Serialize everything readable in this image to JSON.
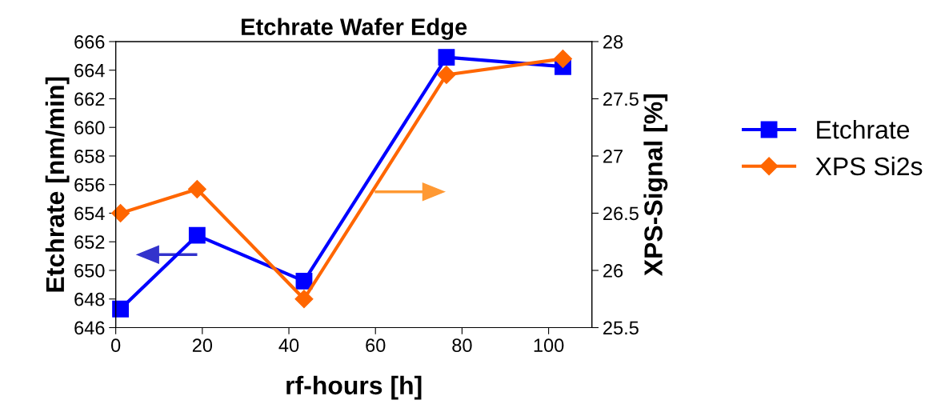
{
  "chart_data": {
    "type": "line",
    "title": "Etchrate Wafer Edge",
    "xlabel": "rf-hours [h]",
    "ylabel": "Etchrate [nm/min]",
    "y2label": "XPS-Signal [%]",
    "xlim": [
      0,
      110
    ],
    "xticks": [
      0,
      20,
      40,
      60,
      80,
      100
    ],
    "ylim": [
      646,
      666
    ],
    "yticks": [
      646,
      648,
      650,
      652,
      654,
      656,
      658,
      660,
      662,
      664,
      666
    ],
    "y2lim": [
      25.5,
      28
    ],
    "y2ticks": [
      25.5,
      26,
      26.5,
      27,
      27.5,
      28
    ],
    "x": [
      1.1,
      18.8,
      43.5,
      76.4,
      103.3
    ],
    "series": [
      {
        "name": "Etchrate",
        "color": "#0000ff",
        "marker": "square",
        "values": [
          647.3,
          652.45,
          649.25,
          664.9,
          664.25
        ]
      },
      {
        "name": "XPS Si2s",
        "color": "#ff6600",
        "marker": "diamond",
        "axis": "y2",
        "values": [
          26.5,
          26.71,
          25.75,
          27.71,
          27.85
        ]
      }
    ],
    "legend": "right",
    "grid": false
  }
}
